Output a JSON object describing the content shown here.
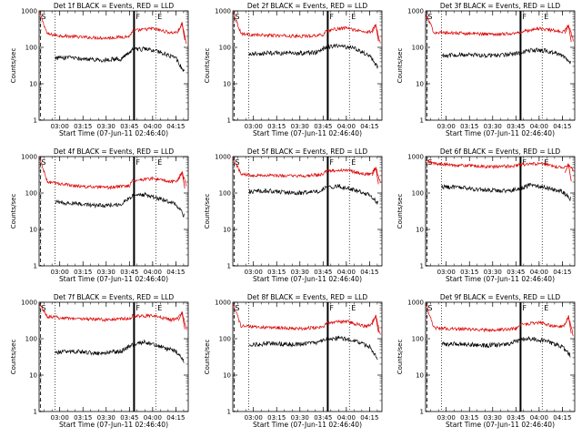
{
  "figure": {
    "panel_title_template": "Det {n}f BLACK = Events, RED = LLD",
    "xlabel": "Start Time (07-Jun-11 02:46:40)",
    "ylabel": "Counts/sec",
    "colors": {
      "events": "#000000",
      "lld": "#dd0000",
      "axes": "#000000"
    }
  },
  "chart_data": [
    {
      "type": "line",
      "title": "Det 1f BLACK = Events, RED = LLD",
      "xlabel": "Start Time (07-Jun-11 02:46:40)",
      "ylabel": "Counts/sec",
      "yscale": "log",
      "ylim": [
        1,
        1000
      ],
      "xlim": [
        "02:46:40",
        "04:23:00"
      ],
      "x_ticks": [
        "03:00",
        "03:15",
        "03:30",
        "03:45",
        "04:00",
        "04:15"
      ],
      "y_ticks": [
        "1",
        "10",
        "100",
        "1000"
      ],
      "markers": {
        "S": "02:47:30",
        "F": "03:48:00",
        "E": "04:02:00"
      },
      "events_range": [
        "02:57:00",
        "04:20:30"
      ],
      "lld_range": [
        "02:47:00",
        "04:22:00"
      ],
      "lld_peak": "04:19:00",
      "series": [
        {
          "name": "BLACK = Events",
          "x": [
            "02:57",
            "03:10",
            "03:25",
            "03:40",
            "03:47",
            "03:55",
            "04:05",
            "04:15",
            "04:20"
          ],
          "y": [
            52,
            50,
            45,
            48,
            85,
            90,
            75,
            50,
            22
          ]
        },
        {
          "name": "RED = LLD",
          "x": [
            "02:47",
            "02:52",
            "03:00",
            "03:15",
            "03:30",
            "03:45",
            "03:47",
            "04:00",
            "04:12",
            "04:16",
            "04:19",
            "04:22"
          ],
          "y": [
            900,
            230,
            210,
            190,
            180,
            200,
            280,
            330,
            250,
            260,
            450,
            120
          ]
        }
      ]
    },
    {
      "type": "line",
      "title": "Det 2f BLACK = Events, RED = LLD",
      "xlabel": "Start Time (07-Jun-11 02:46:40)",
      "ylabel": "Counts/sec",
      "yscale": "log",
      "ylim": [
        1,
        1000
      ],
      "xlim": [
        "02:46:40",
        "04:23:00"
      ],
      "x_ticks": [
        "03:00",
        "03:15",
        "03:30",
        "03:45",
        "04:00",
        "04:15"
      ],
      "y_ticks": [
        "1",
        "10",
        "100",
        "1000"
      ],
      "markers": {
        "S": "02:47:30",
        "F": "03:48:00",
        "E": "04:02:00"
      },
      "events_range": [
        "02:57:00",
        "04:20:30"
      ],
      "lld_range": [
        "02:47:00",
        "04:22:00"
      ],
      "lld_peak": "04:19:00",
      "series": [
        {
          "name": "BLACK = Events",
          "x": [
            "02:57",
            "03:10",
            "03:25",
            "03:40",
            "03:47",
            "03:55",
            "04:05",
            "04:15",
            "04:20"
          ],
          "y": [
            65,
            70,
            68,
            72,
            100,
            110,
            95,
            60,
            30
          ]
        },
        {
          "name": "RED = LLD",
          "x": [
            "02:47",
            "02:52",
            "03:00",
            "03:15",
            "03:30",
            "03:45",
            "03:47",
            "04:00",
            "04:12",
            "04:16",
            "04:19",
            "04:22"
          ],
          "y": [
            900,
            240,
            220,
            210,
            200,
            220,
            290,
            340,
            260,
            270,
            420,
            130
          ]
        }
      ]
    },
    {
      "type": "line",
      "title": "Det 3f BLACK = Events, RED = LLD",
      "xlabel": "Start Time (07-Jun-11 02:46:40)",
      "ylabel": "Counts/sec",
      "yscale": "log",
      "ylim": [
        1,
        1000
      ],
      "xlim": [
        "02:46:40",
        "04:23:00"
      ],
      "x_ticks": [
        "03:00",
        "03:15",
        "03:30",
        "03:45",
        "04:00",
        "04:15"
      ],
      "y_ticks": [
        "1",
        "10",
        "100",
        "1000"
      ],
      "markers": {
        "S": "02:47:30",
        "F": "03:48:00",
        "E": "04:02:00"
      },
      "events_range": [
        "02:57:00",
        "04:20:30"
      ],
      "lld_range": [
        "02:47:00",
        "04:22:00"
      ],
      "lld_peak": "04:19:00",
      "series": [
        {
          "name": "BLACK = Events",
          "x": [
            "02:57",
            "03:10",
            "03:25",
            "03:40",
            "03:47",
            "03:55",
            "04:05",
            "04:15",
            "04:20"
          ],
          "y": [
            60,
            62,
            60,
            63,
            70,
            85,
            80,
            60,
            40
          ]
        },
        {
          "name": "RED = LLD",
          "x": [
            "02:47",
            "02:52",
            "03:00",
            "03:15",
            "03:30",
            "03:45",
            "03:47",
            "04:00",
            "04:12",
            "04:16",
            "04:19",
            "04:22"
          ],
          "y": [
            800,
            260,
            250,
            240,
            230,
            240,
            260,
            330,
            280,
            270,
            400,
            160
          ]
        }
      ]
    },
    {
      "type": "line",
      "title": "Det 4f BLACK = Events, RED = LLD",
      "xlabel": "Start Time (07-Jun-11 02:46:40)",
      "ylabel": "Counts/sec",
      "yscale": "log",
      "ylim": [
        1,
        1000
      ],
      "xlim": [
        "02:46:40",
        "04:23:00"
      ],
      "x_ticks": [
        "03:00",
        "03:15",
        "03:30",
        "03:45",
        "04:00",
        "04:15"
      ],
      "y_ticks": [
        "1",
        "10",
        "100",
        "1000"
      ],
      "markers": {
        "S": "02:47:30",
        "F": "03:48:00",
        "E": "04:02:00"
      },
      "events_range": [
        "02:57:00",
        "04:20:30"
      ],
      "lld_range": [
        "02:47:00",
        "04:22:00"
      ],
      "lld_peak": "04:19:00",
      "series": [
        {
          "name": "BLACK = Events",
          "x": [
            "02:57",
            "03:10",
            "03:25",
            "03:40",
            "03:47",
            "03:55",
            "04:05",
            "04:15",
            "04:20"
          ],
          "y": [
            55,
            52,
            45,
            50,
            85,
            90,
            70,
            50,
            25
          ]
        },
        {
          "name": "RED = LLD",
          "x": [
            "02:47",
            "02:52",
            "03:00",
            "03:15",
            "03:30",
            "03:45",
            "03:47",
            "04:00",
            "04:12",
            "04:16",
            "04:19",
            "04:22"
          ],
          "y": [
            900,
            200,
            180,
            150,
            140,
            160,
            220,
            250,
            200,
            220,
            380,
            150
          ]
        }
      ]
    },
    {
      "type": "line",
      "title": "Det 5f BLACK = Events, RED = LLD",
      "xlabel": "Start Time (07-Jun-11 02:46:40)",
      "ylabel": "Counts/sec",
      "yscale": "log",
      "ylim": [
        1,
        1000
      ],
      "xlim": [
        "02:46:40",
        "04:23:00"
      ],
      "x_ticks": [
        "03:00",
        "03:15",
        "03:30",
        "03:45",
        "04:00",
        "04:15"
      ],
      "y_ticks": [
        "1",
        "10",
        "100",
        "1000"
      ],
      "markers": {
        "S": "02:47:30",
        "F": "03:48:00",
        "E": "04:02:00"
      },
      "events_range": [
        "02:57:00",
        "04:20:30"
      ],
      "lld_range": [
        "02:47:00",
        "04:22:00"
      ],
      "lld_peak": "04:19:00",
      "series": [
        {
          "name": "BLACK = Events",
          "x": [
            "02:57",
            "03:10",
            "03:25",
            "03:40",
            "03:47",
            "03:55",
            "04:05",
            "04:15",
            "04:20"
          ],
          "y": [
            110,
            115,
            100,
            105,
            140,
            155,
            120,
            90,
            55
          ]
        },
        {
          "name": "RED = LLD",
          "x": [
            "02:47",
            "02:52",
            "03:00",
            "03:15",
            "03:30",
            "03:45",
            "03:47",
            "04:00",
            "04:12",
            "04:16",
            "04:19",
            "04:22"
          ],
          "y": [
            900,
            330,
            310,
            300,
            290,
            320,
            400,
            430,
            330,
            340,
            500,
            200
          ]
        }
      ]
    },
    {
      "type": "line",
      "title": "Det 6f BLACK = Events, RED = LLD",
      "xlabel": "Start Time (07-Jun-11 02:46:40)",
      "ylabel": "Counts/sec",
      "yscale": "log",
      "ylim": [
        1,
        1000
      ],
      "xlim": [
        "02:46:40",
        "04:23:00"
      ],
      "x_ticks": [
        "03:00",
        "03:15",
        "03:30",
        "03:45",
        "04:00",
        "04:15"
      ],
      "y_ticks": [
        "1",
        "10",
        "100",
        "1000"
      ],
      "markers": {
        "S": "02:47:30",
        "F": "03:48:00",
        "E": "04:02:00"
      },
      "events_range": [
        "02:57:00",
        "04:20:30"
      ],
      "lld_range": [
        "02:47:00",
        "04:22:00"
      ],
      "lld_peak": "04:19:00",
      "series": [
        {
          "name": "BLACK = Events",
          "x": [
            "02:57",
            "03:10",
            "03:25",
            "03:40",
            "03:47",
            "03:55",
            "04:05",
            "04:15",
            "04:20"
          ],
          "y": [
            150,
            140,
            120,
            115,
            130,
            170,
            140,
            110,
            70
          ]
        },
        {
          "name": "RED = LLD",
          "x": [
            "02:47",
            "02:52",
            "03:00",
            "03:15",
            "03:30",
            "03:45",
            "03:47",
            "04:00",
            "04:12",
            "04:16",
            "04:19",
            "04:22"
          ],
          "y": [
            750,
            650,
            600,
            560,
            520,
            560,
            600,
            640,
            520,
            520,
            600,
            420
          ]
        }
      ]
    },
    {
      "type": "line",
      "title": "Det 7f BLACK = Events, RED = LLD",
      "xlabel": "Start Time (07-Jun-11 02:46:40)",
      "ylabel": "Counts/sec",
      "yscale": "log",
      "ylim": [
        1,
        1000
      ],
      "xlim": [
        "02:46:40",
        "04:23:00"
      ],
      "x_ticks": [
        "03:00",
        "03:15",
        "03:30",
        "03:45",
        "04:00",
        "04:15"
      ],
      "y_ticks": [
        "1",
        "10",
        "100",
        "1000"
      ],
      "markers": {
        "S": "02:47:30",
        "F": "03:48:00",
        "E": "04:02:00"
      },
      "events_range": [
        "02:57:00",
        "04:20:30"
      ],
      "lld_range": [
        "02:47:00",
        "04:22:00"
      ],
      "lld_peak": "04:19:00",
      "series": [
        {
          "name": "BLACK = Events",
          "x": [
            "02:57",
            "03:10",
            "03:25",
            "03:40",
            "03:47",
            "03:55",
            "04:05",
            "04:15",
            "04:20"
          ],
          "y": [
            42,
            45,
            40,
            45,
            70,
            80,
            60,
            45,
            25
          ]
        },
        {
          "name": "RED = LLD",
          "x": [
            "02:47",
            "02:52",
            "03:00",
            "03:15",
            "03:30",
            "03:45",
            "03:47",
            "04:00",
            "04:12",
            "04:16",
            "04:19",
            "04:22"
          ],
          "y": [
            900,
            400,
            380,
            350,
            330,
            360,
            420,
            420,
            330,
            350,
            520,
            180
          ]
        }
      ]
    },
    {
      "type": "line",
      "title": "Det 8f BLACK = Events, RED = LLD",
      "xlabel": "Start Time (07-Jun-11 02:46:40)",
      "ylabel": "Counts/sec",
      "yscale": "log",
      "ylim": [
        1,
        1000
      ],
      "xlim": [
        "02:46:40",
        "04:23:00"
      ],
      "x_ticks": [
        "03:00",
        "03:15",
        "03:30",
        "03:45",
        "04:00",
        "04:15"
      ],
      "y_ticks": [
        "1",
        "10",
        "100",
        "1000"
      ],
      "markers": {
        "S": "02:47:30",
        "F": "03:48:00",
        "E": "04:02:00"
      },
      "events_range": [
        "02:57:00",
        "04:20:30"
      ],
      "lld_range": [
        "02:47:00",
        "04:22:00"
      ],
      "lld_peak": "04:19:00",
      "series": [
        {
          "name": "BLACK = Events",
          "x": [
            "02:57",
            "03:10",
            "03:25",
            "03:40",
            "03:47",
            "03:55",
            "04:05",
            "04:15",
            "04:20"
          ],
          "y": [
            65,
            75,
            70,
            75,
            95,
            105,
            90,
            60,
            30
          ]
        },
        {
          "name": "RED = LLD",
          "x": [
            "02:47",
            "02:52",
            "03:00",
            "03:15",
            "03:30",
            "03:45",
            "03:47",
            "04:00",
            "04:12",
            "04:16",
            "04:19",
            "04:22"
          ],
          "y": [
            900,
            220,
            210,
            200,
            190,
            210,
            270,
            300,
            220,
            240,
            420,
            120
          ]
        }
      ]
    },
    {
      "type": "line",
      "title": "Det 9f BLACK = Events, RED = LLD",
      "xlabel": "Start Time (07-Jun-11 02:46:40)",
      "ylabel": "Counts/sec",
      "yscale": "log",
      "ylim": [
        1,
        1000
      ],
      "xlim": [
        "02:46:40",
        "04:23:00"
      ],
      "x_ticks": [
        "03:00",
        "03:15",
        "03:30",
        "03:45",
        "04:00",
        "04:15"
      ],
      "y_ticks": [
        "1",
        "10",
        "100",
        "1000"
      ],
      "markers": {
        "S": "02:47:30",
        "F": "03:48:00",
        "E": "04:02:00"
      },
      "events_range": [
        "02:57:00",
        "04:20:30"
      ],
      "lld_range": [
        "02:47:00",
        "04:22:00"
      ],
      "lld_peak": "04:19:00",
      "series": [
        {
          "name": "BLACK = Events",
          "x": [
            "02:57",
            "03:10",
            "03:25",
            "03:40",
            "03:47",
            "03:55",
            "04:05",
            "04:15",
            "04:20"
          ],
          "y": [
            70,
            72,
            65,
            70,
            90,
            100,
            85,
            60,
            35
          ]
        },
        {
          "name": "RED = LLD",
          "x": [
            "02:47",
            "02:52",
            "03:00",
            "03:15",
            "03:30",
            "03:45",
            "03:47",
            "04:00",
            "04:12",
            "04:16",
            "04:19",
            "04:22"
          ],
          "y": [
            900,
            200,
            190,
            180,
            170,
            190,
            240,
            280,
            210,
            230,
            400,
            120
          ]
        }
      ]
    }
  ]
}
